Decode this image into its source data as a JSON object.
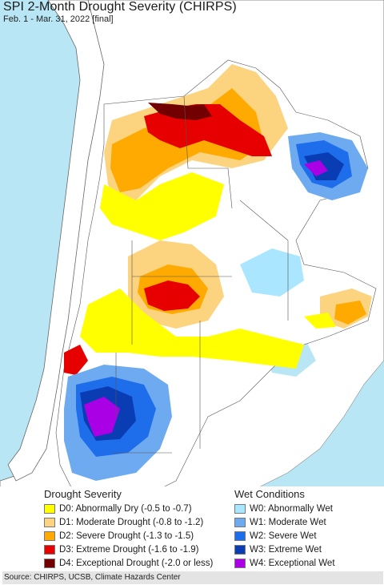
{
  "header": {
    "title": "SPI 2-Month Drought Severity (CHIRPS)",
    "subtitle": "Feb. 1 - Mar. 31, 2022 [final]"
  },
  "legend": {
    "drought_title": "Drought Severity",
    "wet_title": "Wet Conditions",
    "drought_items": [
      {
        "label": "D0: Abnormally Dry (-0.5 to -0.7)",
        "color": "#ffff00"
      },
      {
        "label": "D1: Moderate Drought (-0.8 to -1.2)",
        "color": "#fcd37f"
      },
      {
        "label": "D2: Severe Drought (-1.3 to -1.5)",
        "color": "#ffaa00"
      },
      {
        "label": "D3: Extreme Drought (-1.6 to -1.9)",
        "color": "#e60000"
      },
      {
        "label": "D4: Exceptional Drought (-2.0 or less)",
        "color": "#730000"
      }
    ],
    "wet_items": [
      {
        "label": "W0: Abnormally Wet",
        "color": "#aae6ff"
      },
      {
        "label": "W1: Moderate Wet",
        "color": "#6eaaf0"
      },
      {
        "label": "W2: Severe Wet",
        "color": "#1e6eeb"
      },
      {
        "label": "W3: Extreme Wet",
        "color": "#0a3cb4"
      },
      {
        "label": "W4: Exceptional Wet",
        "color": "#aa00e6"
      }
    ]
  },
  "footer": {
    "source": "Source: CHIRPS, UCSB, Climate Hazards Center"
  },
  "colors": {
    "ocean": "#b9e6f5",
    "neighbor_land": "#ffffff",
    "border": "#555555"
  }
}
